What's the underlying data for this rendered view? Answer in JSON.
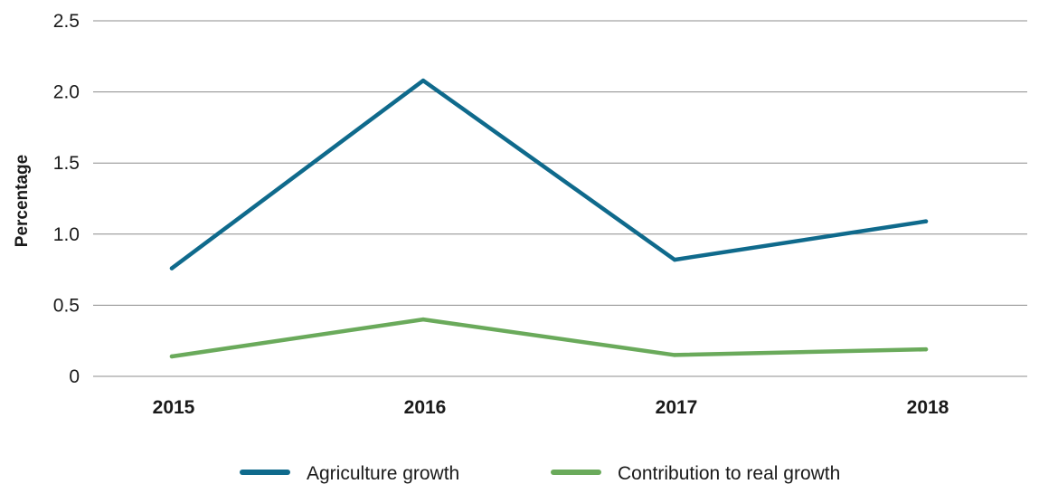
{
  "chart_data": {
    "type": "line",
    "categories": [
      "2015",
      "2016",
      "2017",
      "2018"
    ],
    "series": [
      {
        "name": "Agriculture growth",
        "color": "#0f6a8c",
        "values": [
          0.76,
          2.08,
          0.82,
          1.09
        ]
      },
      {
        "name": "Contribution to real growth",
        "color": "#6aaa5b",
        "values": [
          0.14,
          0.4,
          0.15,
          0.19
        ]
      }
    ],
    "title": "",
    "xlabel": "",
    "ylabel": "Percentage",
    "ylim": [
      0,
      2.5
    ],
    "yticks": [
      "0",
      "0.5",
      "1.0",
      "1.5",
      "2.0",
      "2.5"
    ],
    "grid": "horizontal",
    "legend_position": "bottom-center"
  }
}
